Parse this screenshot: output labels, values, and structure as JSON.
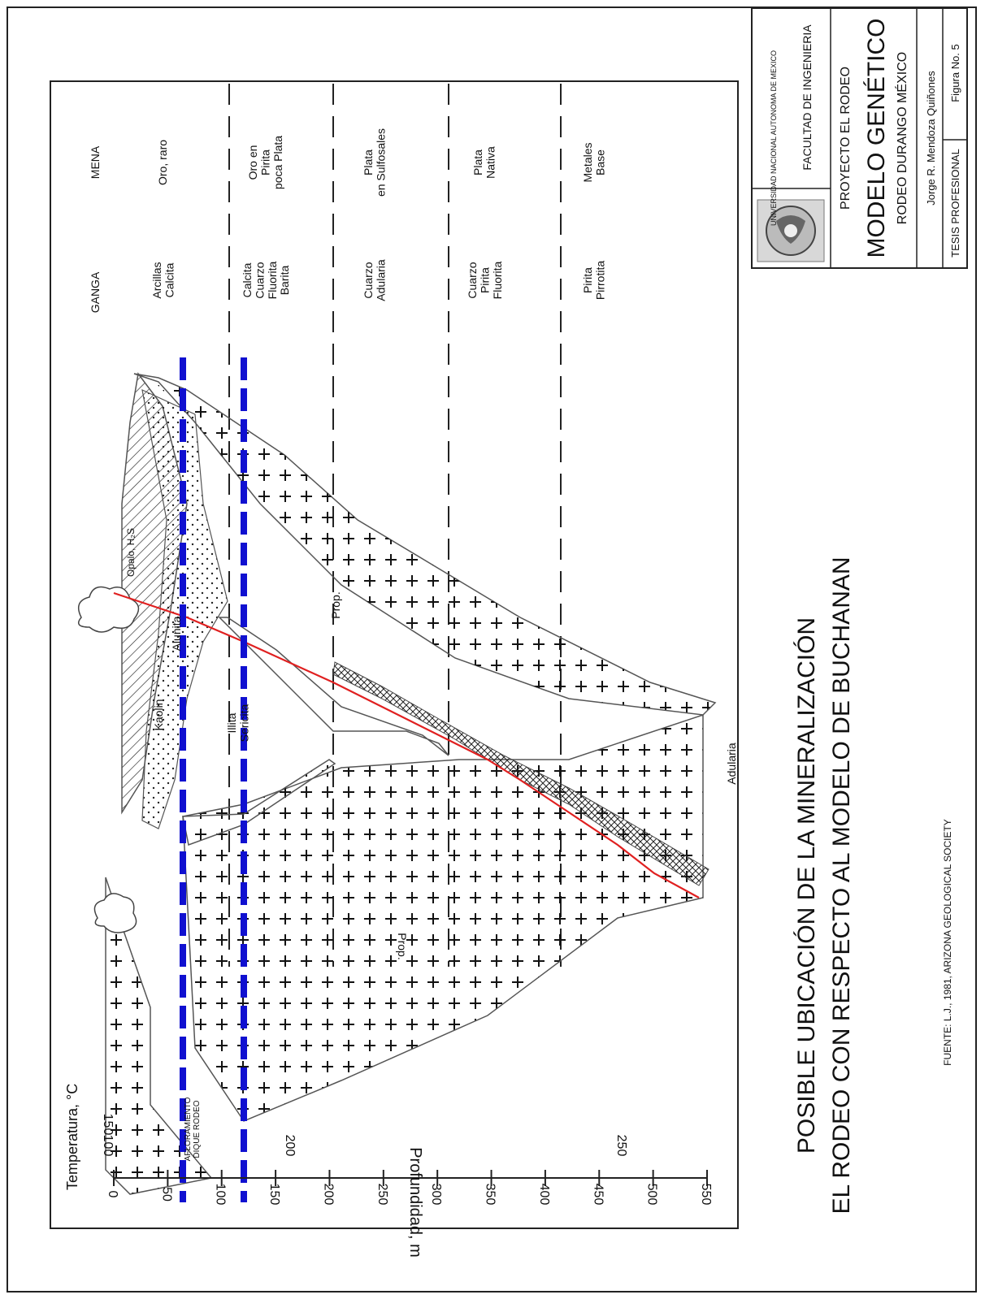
{
  "title_block": {
    "university": "UNIVERSIDAD NACIONAL AUTONOMA DE MEXICO",
    "faculty": "FACULTAD DE INGENIERIA",
    "project": "PROYECTO EL RODEO",
    "model": "MODELO GENÉTICO",
    "location": "RODEO DURANGO MÉXICO",
    "author": "Jorge R. Mendoza Quiñones",
    "thesis": "TESIS PROFESIONAL",
    "figure": "Figura No. 5"
  },
  "caption": {
    "line1": "POSIBLE UBICACIÓN DE LA MINERALIZACIÓN",
    "line2": "EL RODEO CON RESPECTO AL MODELO DE BUCHANAN"
  },
  "source": "FUENTE: L.J., 1981, ARIZONA GEOLOGICAL SOCIETY",
  "diagram": {
    "depth_axis_label": "Profundidad, m",
    "depth_ticks": [
      "0",
      "50",
      "100",
      "150",
      "200",
      "250",
      "300",
      "350",
      "400",
      "450",
      "500",
      "550"
    ],
    "temperature_label": "Temperatura, °C",
    "temperature_ticks": [
      "100",
      "150",
      "200",
      "250"
    ],
    "header_ganga": "GANGA",
    "header_mena": "MENA",
    "zones": [
      {
        "ganga": "Arcillas\nCalcita",
        "mena": "Oro, raro"
      },
      {
        "ganga": "Calcita\nCuarzo\nFluorita\nBarita",
        "mena": "Oro en\nPirita\npoca Plata"
      },
      {
        "ganga": "Cuarzo\nAdularia",
        "mena": "Plata\nen Sulfosales"
      },
      {
        "ganga": "Cuarzo\nPirita\nFluorita",
        "mena": "Plata\nNativa"
      },
      {
        "ganga": "Pirita\nPirrotita",
        "mena": "Metales\nBase"
      }
    ],
    "rock_labels": {
      "kaolin": "Kaolin",
      "alunita": "Alunita",
      "illita": "Illita\nSericita",
      "adularia": "Adularia",
      "opalo": "Opalo, H₂S",
      "prop": "Prop.",
      "afloramiento": "AFLORAMIENTO\nDIQUE RODEO"
    },
    "colors": {
      "outcrop_lines": "#1010d0",
      "red_line": "#e02020"
    }
  }
}
